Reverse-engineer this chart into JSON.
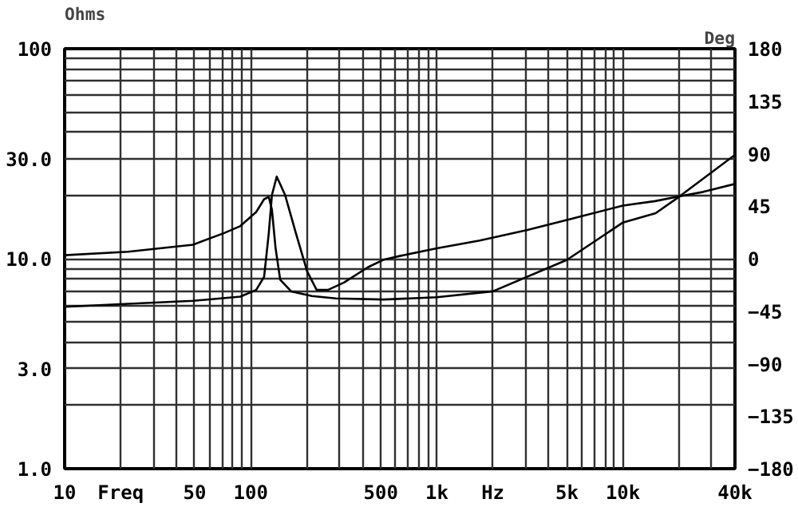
{
  "chart_data": {
    "type": "line",
    "ylabel": "Ohms",
    "y2label": "Deg",
    "log": "xy",
    "grid": true,
    "xlim": [
      10,
      40000
    ],
    "xticks": [
      10,
      {
        "value": 20,
        "label": "Freq"
      },
      50,
      100,
      500,
      {
        "value": 1000,
        "label": "1k"
      },
      {
        "value": 2000,
        "label": "Hz"
      },
      {
        "value": 5000,
        "label": "5k"
      },
      {
        "value": 10000,
        "label": "10k"
      },
      {
        "value": 40000,
        "label": "40k"
      }
    ],
    "ylim": [
      1,
      100
    ],
    "yticks": [
      {
        "value": 1,
        "label": "1.0"
      },
      {
        "value": 3,
        "label": "3.0"
      },
      {
        "value": 10,
        "label": "10.0"
      },
      {
        "value": 30,
        "label": "30.0"
      },
      100
    ],
    "y2lim": [
      -180,
      180
    ],
    "y2ticks": [
      -180,
      -135,
      -90,
      -45,
      0,
      45,
      90,
      135,
      180
    ],
    "series": [
      {
        "color": "#000000",
        "x": [
          10,
          22,
          49,
          88,
          107,
          118,
          125,
          130,
          138,
          153,
          175,
          201,
          226,
          260,
          317,
          426,
          519,
          632,
          1000,
          1700,
          3070,
          5000,
          10000,
          14900,
          20000,
          27000,
          40000
        ],
        "values": [
          5.9,
          6.1,
          6.3,
          6.6,
          7.1,
          8.2,
          13.2,
          20.1,
          24.6,
          20.1,
          13.2,
          8.7,
          7.1,
          7.1,
          7.7,
          9.1,
          9.9,
          10.3,
          11.2,
          12.2,
          13.7,
          15.3,
          17.9,
          18.8,
          19.8,
          20.8,
          22.7
        ]
      },
      {
        "color": "#000000",
        "axis": "y2",
        "x": [
          10,
          22,
          49,
          72,
          88,
          107,
          118,
          125,
          130,
          136,
          144,
          165,
          213,
          287,
          519,
          1000,
          2000,
          5000,
          10000,
          15000,
          20000,
          40000
        ],
        "values": [
          3,
          6,
          12,
          22,
          28,
          40,
          51,
          53,
          42,
          9,
          -18,
          -28,
          -32,
          -34,
          -35,
          -33,
          -28,
          -1,
          31,
          39,
          53,
          89
        ]
      }
    ]
  }
}
